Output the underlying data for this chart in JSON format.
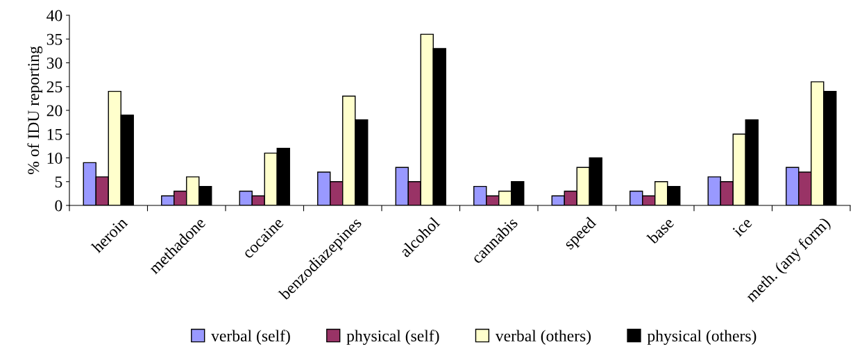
{
  "chart_data": {
    "type": "bar",
    "ylabel": "% of IDU reporting",
    "categories": [
      "heroin",
      "methadone",
      "cocaine",
      "benzodiazepines",
      "alcohol",
      "cannabis",
      "speed",
      "base",
      "ice",
      "meth. (any form)"
    ],
    "series": [
      {
        "name": "verbal (self)",
        "color": "#9999ff",
        "values": [
          9,
          2,
          3,
          7,
          8,
          4,
          2,
          3,
          6,
          8
        ]
      },
      {
        "name": "physical (self)",
        "color": "#993366",
        "values": [
          6,
          3,
          2,
          5,
          5,
          2,
          3,
          2,
          5,
          7
        ]
      },
      {
        "name": "verbal (others)",
        "color": "#ffffcc",
        "values": [
          24,
          6,
          11,
          23,
          36,
          3,
          8,
          5,
          15,
          26
        ]
      },
      {
        "name": "physical (others)",
        "color": "#000000",
        "values": [
          19,
          4,
          12,
          18,
          33,
          5,
          10,
          4,
          18,
          24
        ]
      }
    ],
    "ylim": [
      0,
      40
    ],
    "yticks": [
      0,
      5,
      10,
      15,
      20,
      25,
      30,
      35,
      40
    ],
    "grid": false,
    "legend": "bottom"
  }
}
